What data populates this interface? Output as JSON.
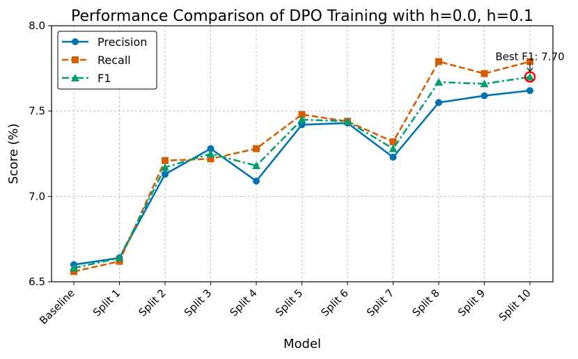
{
  "chart_data": {
    "type": "line",
    "title": "Performance Comparison of DPO Training with h=0.0, h=0.1",
    "xlabel": "Model",
    "ylabel": "Score (%)",
    "ylim": [
      6.5,
      8.0
    ],
    "yticks": [
      6.5,
      7.0,
      7.5,
      8.0
    ],
    "ytick_labels": [
      "6.5",
      "7.0",
      "7.5",
      "8.0"
    ],
    "grid": true,
    "legend_position": "top-left",
    "categories": [
      "Baseline",
      "Split 1",
      "Split 2",
      "Split 3",
      "Split 4",
      "Split 5",
      "Split 6",
      "Split 7",
      "Split 8",
      "Split 9",
      "Split 10"
    ],
    "series": [
      {
        "name": "Precision",
        "color": "#0072b2",
        "marker": "circle",
        "dash": "solid",
        "values": [
          6.6,
          6.64,
          7.13,
          7.28,
          7.09,
          7.42,
          7.43,
          7.23,
          7.55,
          7.59,
          7.62
        ]
      },
      {
        "name": "Recall",
        "color": "#d55e00",
        "marker": "square",
        "dash": "dashed",
        "values": [
          6.56,
          6.62,
          7.21,
          7.22,
          7.28,
          7.48,
          7.44,
          7.32,
          7.79,
          7.72,
          7.79
        ]
      },
      {
        "name": "F1",
        "color": "#009e73",
        "marker": "triangle",
        "dash": "dashdot",
        "values": [
          6.58,
          6.64,
          7.17,
          7.25,
          7.18,
          7.45,
          7.44,
          7.28,
          7.67,
          7.66,
          7.7
        ]
      }
    ],
    "annotation": {
      "text": "Best F1: 7.70",
      "category_index": 10,
      "value": 7.7,
      "highlight_color": "#ff0000"
    }
  }
}
